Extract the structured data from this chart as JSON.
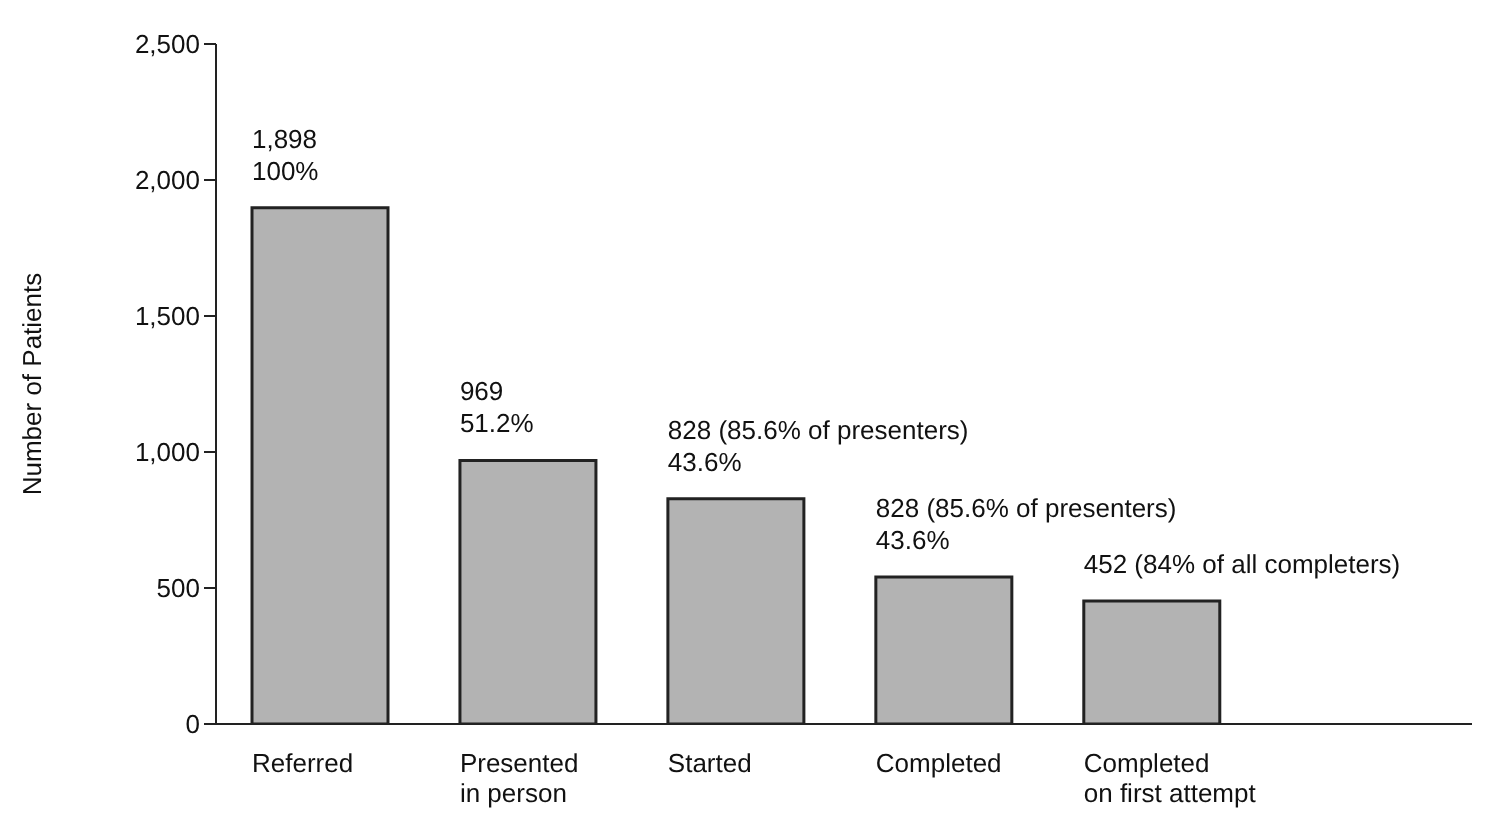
{
  "chart_data": {
    "type": "bar",
    "ylabel": "Number of Patients",
    "categories": [
      "Referred",
      "Presented in person",
      "Started",
      "Completed",
      "Completed on first attempt"
    ],
    "values": [
      1898,
      969,
      828,
      540,
      452
    ],
    "color": "#b3b3b3",
    "ylim": [
      0,
      2500
    ],
    "yticks": [
      {
        "value": 0,
        "label": "0"
      },
      {
        "value": 500,
        "label": "500"
      },
      {
        "value": 1000,
        "label": "1,000"
      },
      {
        "value": 1500,
        "label": "1,500"
      },
      {
        "value": 2000,
        "label": "2,000"
      },
      {
        "value": 2500,
        "label": "2,500"
      }
    ],
    "grid": false,
    "annotations": [
      {
        "text": "1,898\n100%",
        "x": "Referred",
        "y": 1898
      },
      {
        "text": "969\n51.2%",
        "x": "Presented in person",
        "y": 969
      },
      {
        "text": "828 (85.6% of presenters)\n43.6%",
        "x": "Started",
        "y": 828
      },
      {
        "text": "828 (85.6% of presenters)\n43.6%",
        "x": "Completed",
        "y": 540
      },
      {
        "text": "452 (84% of all completers)",
        "x": "Completed on first attempt",
        "y": 452
      }
    ]
  }
}
